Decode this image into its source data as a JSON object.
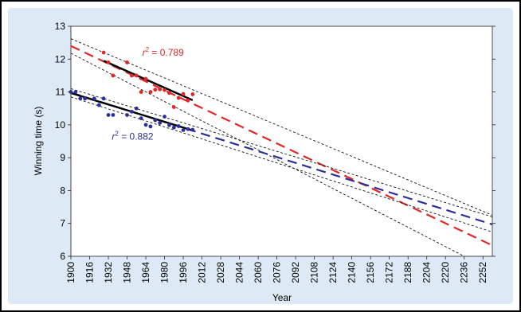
{
  "chart_data": {
    "type": "scatter",
    "xlabel": "Year",
    "ylabel": "Winning time (s)",
    "xlim": [
      1900,
      2260
    ],
    "ylim": [
      6,
      13
    ],
    "x_ticks": [
      1900,
      1916,
      1932,
      1948,
      1964,
      1980,
      1996,
      2012,
      2028,
      2044,
      2060,
      2076,
      2092,
      2108,
      2124,
      2140,
      2156,
      2172,
      2188,
      2204,
      2220,
      2236,
      2252
    ],
    "y_ticks": [
      6,
      7,
      8,
      9,
      10,
      11,
      12,
      13
    ],
    "grid": false,
    "colors": {
      "women": "#e02626",
      "men": "#2a2f9a",
      "ci": "#111111",
      "frame_bg": "#ddeaf5",
      "panel_bg": "#ffffff"
    },
    "annotations": [
      {
        "prefix": "r",
        "sup": "2",
        "text": " = 0.789",
        "x": 1961,
        "y": 12.1,
        "color": "#e02626"
      },
      {
        "prefix": "r",
        "sup": "2",
        "text": " = 0.882",
        "x": 1935,
        "y": 9.55,
        "color": "#2a2f9a"
      }
    ],
    "series": [
      {
        "key": "women",
        "points": [
          [
            1928,
            12.2
          ],
          [
            1932,
            11.9
          ],
          [
            1936,
            11.5
          ],
          [
            1948,
            11.9
          ],
          [
            1952,
            11.5
          ],
          [
            1956,
            11.5
          ],
          [
            1960,
            11.0
          ],
          [
            1964,
            11.4
          ],
          [
            1968,
            11.0
          ],
          [
            1972,
            11.07
          ],
          [
            1976,
            11.08
          ],
          [
            1980,
            11.06
          ],
          [
            1984,
            10.97
          ],
          [
            1988,
            10.54
          ],
          [
            1992,
            10.82
          ],
          [
            1996,
            10.94
          ],
          [
            2000,
            10.75
          ],
          [
            2004,
            10.93
          ]
        ],
        "fit": {
          "x": [
            1928,
            2004
          ],
          "y": [
            11.95,
            10.75
          ]
        },
        "extrapolation": {
          "x": [
            1900,
            2260
          ],
          "y": [
            12.4,
            6.33
          ]
        },
        "ci_upper": {
          "x": [
            1900,
            2260
          ],
          "y": [
            12.62,
            7.25
          ]
        },
        "ci_lower": {
          "x": [
            1900,
            2236
          ],
          "y": [
            12.18,
            6.0
          ]
        }
      },
      {
        "key": "men",
        "points": [
          [
            1900,
            11.0
          ],
          [
            1904,
            11.0
          ],
          [
            1908,
            10.8
          ],
          [
            1912,
            10.8
          ],
          [
            1920,
            10.8
          ],
          [
            1924,
            10.6
          ],
          [
            1928,
            10.8
          ],
          [
            1932,
            10.3
          ],
          [
            1936,
            10.3
          ],
          [
            1948,
            10.3
          ],
          [
            1952,
            10.4
          ],
          [
            1956,
            10.5
          ],
          [
            1960,
            10.2
          ],
          [
            1964,
            10.0
          ],
          [
            1968,
            9.95
          ],
          [
            1972,
            10.14
          ],
          [
            1976,
            10.06
          ],
          [
            1980,
            10.25
          ],
          [
            1984,
            9.99
          ],
          [
            1988,
            9.92
          ],
          [
            1992,
            9.96
          ],
          [
            1996,
            9.84
          ],
          [
            2000,
            9.87
          ],
          [
            2004,
            9.85
          ]
        ],
        "fit": {
          "x": [
            1900,
            2004
          ],
          "y": [
            10.97,
            9.83
          ]
        },
        "extrapolation": {
          "x": [
            1900,
            2260
          ],
          "y": [
            10.98,
            6.97
          ]
        },
        "ci_upper": {
          "x": [
            1900,
            2260
          ],
          "y": [
            11.1,
            7.2
          ]
        },
        "ci_lower": {
          "x": [
            1900,
            2260
          ],
          "y": [
            10.85,
            6.74
          ]
        }
      }
    ]
  }
}
